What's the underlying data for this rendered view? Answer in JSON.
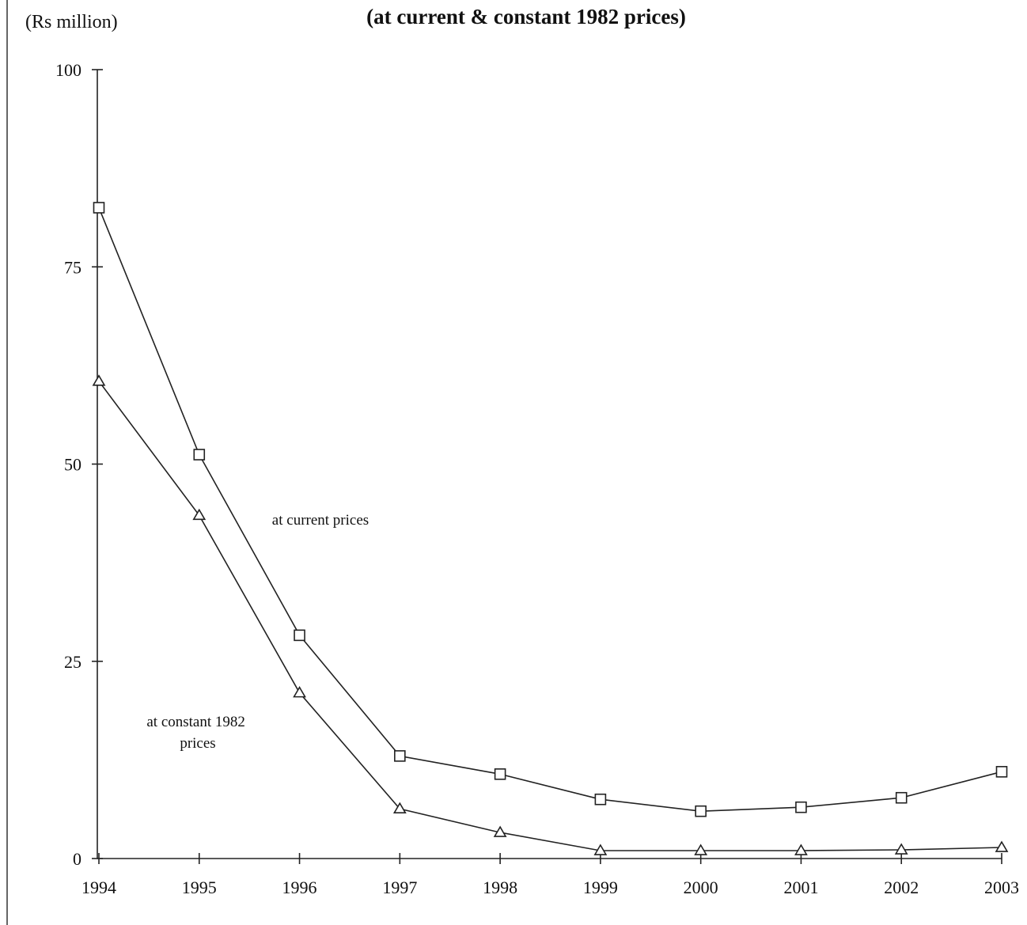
{
  "chart_data": {
    "type": "line",
    "title": "(at current & constant 1982 prices)",
    "unit_label": "(Rs million)",
    "x": [
      "1994",
      "1995",
      "1996",
      "1997",
      "1998",
      "1999",
      "2000",
      "2001",
      "2002",
      "2003"
    ],
    "yticks": [
      "0",
      "25",
      "50",
      "75",
      "100"
    ],
    "ylim": [
      0,
      100
    ],
    "grid": false,
    "series": [
      {
        "name": "at current prices",
        "marker": "square",
        "values": [
          82.5,
          51.2,
          28.3,
          13.0,
          10.7,
          7.5,
          6.0,
          6.5,
          7.7,
          11.0
        ]
      },
      {
        "name": "at constant 1982 prices",
        "marker": "triangle",
        "values": [
          60.5,
          43.5,
          21.0,
          6.3,
          3.3,
          1.0,
          1.0,
          1.0,
          1.1,
          1.4
        ]
      }
    ]
  }
}
